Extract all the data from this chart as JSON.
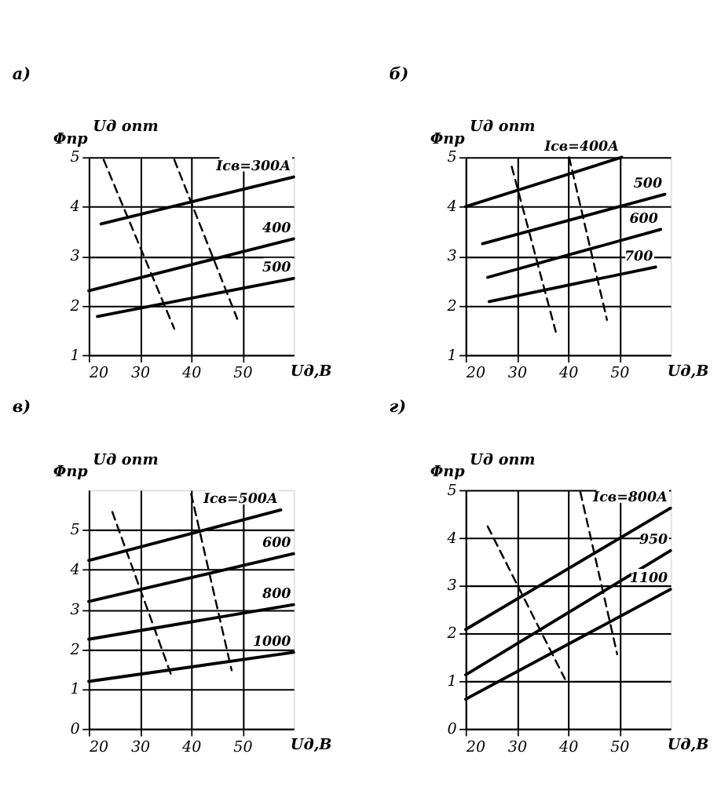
{
  "chart_data": [
    {
      "type": "line",
      "title": "а)",
      "xlabel": "Uд,В",
      "ylabel": "Φпр",
      "xlim": [
        20,
        60
      ],
      "ylim": [
        1,
        5
      ],
      "xticks": [
        20,
        30,
        40,
        50
      ],
      "yticks": [
        1,
        2,
        3,
        4,
        5
      ],
      "grid": true,
      "legend": false,
      "marker": "none",
      "annotations": [
        "Uд опт"
      ],
      "series": [
        {
          "name": "Iсв=300А",
          "color": "#000000",
          "x": [
            22.4,
            60
          ],
          "values": [
            3.65,
            4.6
          ]
        },
        {
          "name": "400",
          "color": "#000000",
          "x": [
            20,
            60
          ],
          "values": [
            2.3,
            3.35
          ]
        },
        {
          "name": "500",
          "color": "#000000",
          "x": [
            21.7,
            60
          ],
          "values": [
            1.78,
            2.55
          ]
        },
        {
          "color": "#000000",
          "line_style": "dashed",
          "x": [
            22.9,
            36.7
          ],
          "values": [
            4.95,
            1.53
          ]
        },
        {
          "color": "#000000",
          "line_style": "dashed",
          "x": [
            36.7,
            49
          ],
          "values": [
            4.95,
            1.73
          ]
        }
      ]
    },
    {
      "type": "line",
      "title": "б)",
      "xlabel": "Uд,В",
      "ylabel": "Φпр",
      "xlim": [
        20,
        60
      ],
      "ylim": [
        1,
        5
      ],
      "xticks": [
        20,
        30,
        40,
        50
      ],
      "yticks": [
        1,
        2,
        3,
        4,
        5
      ],
      "grid": true,
      "legend": false,
      "marker": "none",
      "annotations": [
        "Uд опт"
      ],
      "series": [
        {
          "name": "Iсв=400А",
          "color": "#000000",
          "x": [
            20,
            50.5
          ],
          "values": [
            4.0,
            5.0
          ]
        },
        {
          "name": "500",
          "color": "#000000",
          "x": [
            23.3,
            58.9
          ],
          "values": [
            3.25,
            4.25
          ]
        },
        {
          "name": "600",
          "color": "#000000",
          "x": [
            24.3,
            58.1
          ],
          "values": [
            2.57,
            3.54
          ]
        },
        {
          "name": "700",
          "color": "#000000",
          "x": [
            24.6,
            57.1
          ],
          "values": [
            2.08,
            2.78
          ]
        },
        {
          "color": "#000000",
          "line_style": "dashed",
          "x": [
            29.0,
            37.6
          ],
          "values": [
            4.81,
            1.47
          ]
        },
        {
          "color": "#000000",
          "line_style": "dashed",
          "x": [
            40.2,
            47.6
          ],
          "values": [
            5.0,
            1.71
          ]
        }
      ]
    },
    {
      "type": "line",
      "title": "в)",
      "xlabel": "Uд,В",
      "ylabel": "Φпр",
      "xlim": [
        20,
        60
      ],
      "ylim": [
        0,
        6
      ],
      "xticks": [
        20,
        30,
        40,
        50
      ],
      "yticks": [
        0,
        1,
        2,
        3,
        4,
        5
      ],
      "grid": true,
      "legend": false,
      "marker": "none",
      "annotations": [
        "Uд опт"
      ],
      "series": [
        {
          "name": "Iсв=500А",
          "color": "#000000",
          "x": [
            20,
            57.5
          ],
          "values": [
            4.23,
            5.5
          ]
        },
        {
          "name": "600",
          "color": "#000000",
          "x": [
            20,
            60
          ],
          "values": [
            3.2,
            4.4
          ]
        },
        {
          "name": "800",
          "color": "#000000",
          "x": [
            20,
            60
          ],
          "values": [
            2.25,
            3.12
          ]
        },
        {
          "name": "1000",
          "color": "#000000",
          "x": [
            20,
            60
          ],
          "values": [
            1.19,
            1.92
          ]
        },
        {
          "color": "#000000",
          "line_style": "dashed",
          "x": [
            24.6,
            36.3
          ],
          "values": [
            5.45,
            1.28
          ]
        },
        {
          "color": "#000000",
          "line_style": "dashed",
          "x": [
            40,
            47.9
          ],
          "values": [
            5.9,
            1.47
          ]
        }
      ]
    },
    {
      "type": "line",
      "title": "г)",
      "xlabel": "Uд,В",
      "ylabel": "Φпр",
      "xlim": [
        20,
        60
      ],
      "ylim": [
        0,
        5
      ],
      "xticks": [
        20,
        30,
        40,
        50
      ],
      "yticks": [
        0,
        1,
        2,
        3,
        4,
        5
      ],
      "grid": true,
      "legend": false,
      "marker": "none",
      "annotations": [
        "Uд опт"
      ],
      "series": [
        {
          "name": "Iсв=800А",
          "color": "#000000",
          "x": [
            20,
            60
          ],
          "values": [
            2.08,
            4.62
          ]
        },
        {
          "name": "950",
          "color": "#000000",
          "x": [
            20,
            60
          ],
          "values": [
            1.13,
            3.73
          ]
        },
        {
          "name": "1100",
          "color": "#000000",
          "x": [
            20,
            60
          ],
          "values": [
            0.62,
            2.92
          ]
        },
        {
          "color": "#000000",
          "line_style": "dashed",
          "x": [
            24.3,
            39.4
          ],
          "values": [
            4.24,
            1.04
          ]
        },
        {
          "color": "#000000",
          "line_style": "dashed",
          "x": [
            42.4,
            49.6
          ],
          "values": [
            4.96,
            1.56
          ]
        }
      ]
    }
  ]
}
